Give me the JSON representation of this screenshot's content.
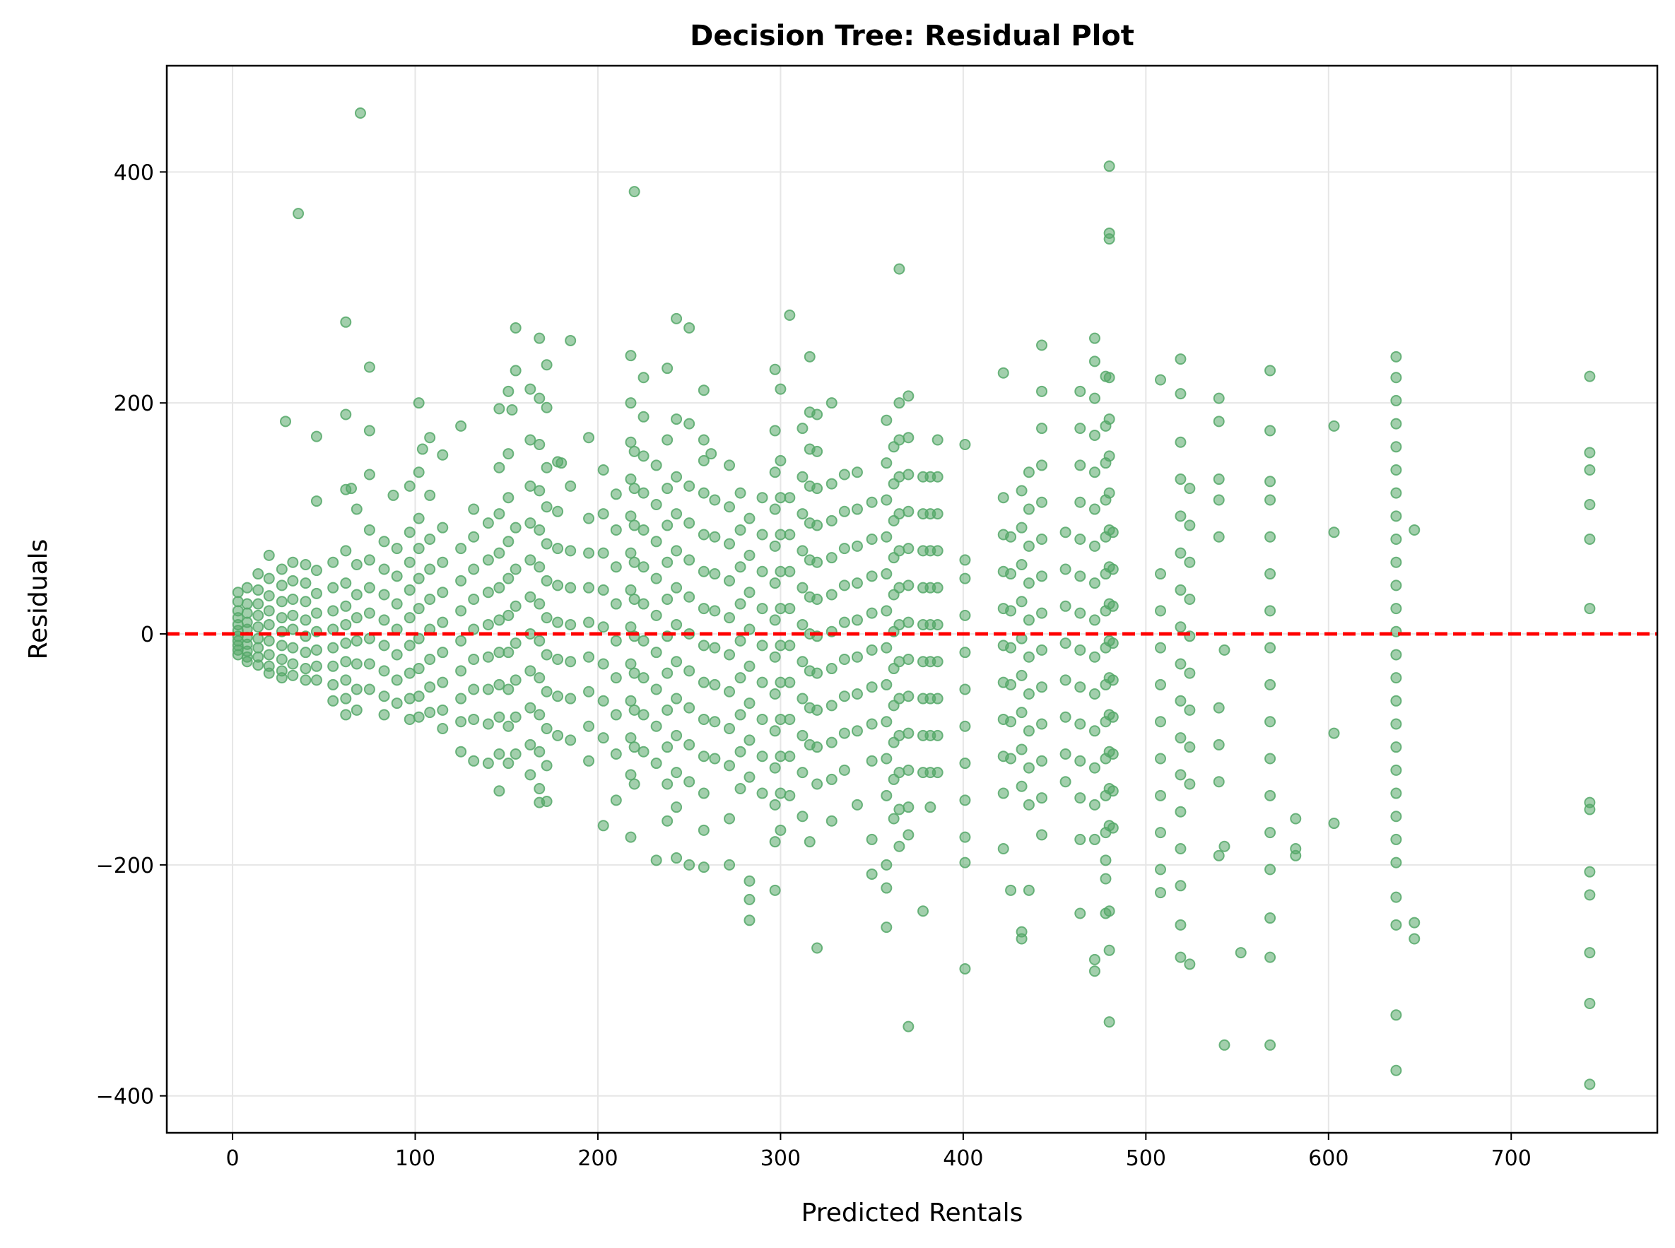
{
  "chart_data": {
    "type": "scatter",
    "title": "Decision Tree: Residual Plot",
    "xlabel": "Predicted Rentals",
    "ylabel": "Residuals",
    "xlim": [
      -36,
      780
    ],
    "ylim": [
      -432,
      492
    ],
    "xticks": [
      0,
      100,
      200,
      300,
      400,
      500,
      600,
      700
    ],
    "yticks": [
      -400,
      -200,
      0,
      200,
      400
    ],
    "ytick_labels": [
      "−400",
      "−200",
      "0",
      "200",
      "400"
    ],
    "grid": true,
    "point_color": "#55a868",
    "reference_line": {
      "y": 0,
      "color": "#ff0000",
      "style": "dashed"
    },
    "columns": [
      {
        "x": 3,
        "y": [
          36,
          28,
          20,
          14,
          8,
          3,
          -2,
          -6,
          -10,
          -14,
          -18
        ]
      },
      {
        "x": 8,
        "y": [
          40,
          26,
          18,
          10,
          4,
          -3,
          -9,
          -15,
          -20,
          -24
        ]
      },
      {
        "x": 14,
        "y": [
          52,
          38,
          26,
          16,
          6,
          -4,
          -12,
          -20,
          -27
        ]
      },
      {
        "x": 20,
        "y": [
          68,
          48,
          33,
          20,
          8,
          -6,
          -18,
          -28,
          -34
        ]
      },
      {
        "x": 27,
        "y": [
          56,
          42,
          28,
          14,
          2,
          -10,
          -22,
          -32,
          -38
        ]
      },
      {
        "x": 33,
        "y": [
          62,
          46,
          30,
          16,
          4,
          -12,
          -26,
          -36
        ]
      },
      {
        "x": 40,
        "y": [
          60,
          44,
          28,
          12,
          -2,
          -16,
          -30,
          -40
        ]
      },
      {
        "x": 46,
        "y": [
          171,
          115,
          55,
          35,
          18,
          2,
          -14,
          -28,
          -40
        ]
      },
      {
        "x": 55,
        "y": [
          62,
          40,
          20,
          4,
          -12,
          -28,
          -44,
          -58
        ]
      },
      {
        "x": 62,
        "y": [
          270,
          190,
          125,
          72,
          44,
          24,
          8,
          -8,
          -24,
          -40,
          -56,
          -70
        ]
      },
      {
        "x": 68,
        "y": [
          108,
          60,
          34,
          14,
          -6,
          -26,
          -48,
          -66
        ]
      },
      {
        "x": 75,
        "y": [
          231,
          176,
          138,
          90,
          64,
          40,
          18,
          -4,
          -26,
          -48
        ]
      },
      {
        "x": 83,
        "y": [
          80,
          56,
          34,
          12,
          -10,
          -32,
          -54,
          -70
        ]
      },
      {
        "x": 90,
        "y": [
          74,
          50,
          26,
          4,
          -18,
          -40,
          -60
        ]
      },
      {
        "x": 97,
        "y": [
          128,
          88,
          62,
          38,
          14,
          -10,
          -34,
          -56,
          -74
        ]
      },
      {
        "x": 102,
        "y": [
          200,
          140,
          100,
          74,
          48,
          22,
          -4,
          -30,
          -54,
          -72
        ]
      },
      {
        "x": 108,
        "y": [
          170,
          120,
          82,
          56,
          30,
          4,
          -22,
          -46,
          -68
        ]
      },
      {
        "x": 115,
        "y": [
          155,
          92,
          62,
          36,
          10,
          -16,
          -42,
          -66,
          -82
        ]
      },
      {
        "x": 125,
        "y": [
          180,
          74,
          46,
          20,
          -6,
          -32,
          -56,
          -76,
          -102
        ]
      },
      {
        "x": 132,
        "y": [
          108,
          84,
          56,
          30,
          4,
          -22,
          -48,
          -74,
          -110
        ]
      },
      {
        "x": 140,
        "y": [
          96,
          64,
          36,
          8,
          -20,
          -48,
          -78,
          -112
        ]
      },
      {
        "x": 146,
        "y": [
          195,
          144,
          104,
          70,
          40,
          12,
          -16,
          -44,
          -72,
          -104,
          -136
        ]
      },
      {
        "x": 151,
        "y": [
          210,
          156,
          118,
          80,
          48,
          16,
          -16,
          -48,
          -80,
          -112
        ]
      },
      {
        "x": 155,
        "y": [
          265,
          228,
          92,
          56,
          24,
          -8,
          -40,
          -72,
          -104
        ]
      },
      {
        "x": 163,
        "y": [
          212,
          168,
          128,
          96,
          64,
          32,
          0,
          -32,
          -64,
          -96,
          -122
        ]
      },
      {
        "x": 168,
        "y": [
          256,
          204,
          164,
          124,
          90,
          58,
          26,
          -6,
          -38,
          -70,
          -102,
          -134,
          -146
        ]
      },
      {
        "x": 172,
        "y": [
          233,
          196,
          144,
          110,
          78,
          46,
          14,
          -18,
          -50,
          -82,
          -114,
          -145
        ]
      },
      {
        "x": 178,
        "y": [
          149,
          106,
          74,
          42,
          10,
          -22,
          -54,
          -88
        ]
      },
      {
        "x": 185,
        "y": [
          254,
          128,
          72,
          40,
          8,
          -24,
          -56,
          -92
        ]
      },
      {
        "x": 195,
        "y": [
          100,
          70,
          40,
          10,
          -20,
          -50,
          -80,
          -110
        ]
      },
      {
        "x": 203,
        "y": [
          142,
          104,
          70,
          38,
          6,
          -26,
          -58,
          -90,
          -166
        ]
      },
      {
        "x": 210,
        "y": [
          121,
          90,
          58,
          26,
          -6,
          -38,
          -70,
          -104,
          -144
        ]
      },
      {
        "x": 218,
        "y": [
          241,
          200,
          166,
          134,
          102,
          70,
          38,
          6,
          -26,
          -58,
          -90,
          -122,
          -176
        ]
      },
      {
        "x": 220,
        "y": [
          383,
          158,
          126,
          94,
          62,
          30,
          -2,
          -34,
          -66,
          -98,
          -130
        ]
      },
      {
        "x": 225,
        "y": [
          222,
          188,
          154,
          122,
          90,
          58,
          26,
          -6,
          -38,
          -70,
          -102
        ]
      },
      {
        "x": 232,
        "y": [
          146,
          112,
          80,
          48,
          16,
          -16,
          -48,
          -80,
          -112,
          -196
        ]
      },
      {
        "x": 238,
        "y": [
          230,
          168,
          126,
          94,
          62,
          30,
          -2,
          -34,
          -66,
          -98,
          -130,
          -162
        ]
      },
      {
        "x": 243,
        "y": [
          273,
          186,
          136,
          104,
          72,
          40,
          8,
          -24,
          -56,
          -88,
          -120,
          -150,
          -194
        ]
      },
      {
        "x": 250,
        "y": [
          265,
          182,
          128,
          96,
          64,
          32,
          0,
          -32,
          -64,
          -96,
          -128,
          -200
        ]
      },
      {
        "x": 258,
        "y": [
          211,
          168,
          150,
          122,
          86,
          54,
          22,
          -10,
          -42,
          -74,
          -106,
          -138,
          -170,
          -202
        ]
      },
      {
        "x": 264,
        "y": [
          116,
          84,
          52,
          20,
          -12,
          -44,
          -76,
          -108
        ]
      },
      {
        "x": 272,
        "y": [
          146,
          110,
          78,
          46,
          14,
          -18,
          -50,
          -82,
          -114,
          -160,
          -200
        ]
      },
      {
        "x": 278,
        "y": [
          122,
          90,
          58,
          26,
          -6,
          -38,
          -70,
          -102,
          -134
        ]
      },
      {
        "x": 283,
        "y": [
          100,
          68,
          36,
          4,
          -28,
          -60,
          -92,
          -124,
          -214,
          -230,
          -248
        ]
      },
      {
        "x": 290,
        "y": [
          118,
          86,
          54,
          22,
          -10,
          -42,
          -74,
          -106,
          -138
        ]
      },
      {
        "x": 297,
        "y": [
          229,
          176,
          140,
          108,
          76,
          44,
          12,
          -20,
          -52,
          -84,
          -116,
          -148,
          -180,
          -222
        ]
      },
      {
        "x": 300,
        "y": [
          212,
          150,
          118,
          86,
          54,
          22,
          -10,
          -42,
          -74,
          -106,
          -138,
          -170
        ]
      },
      {
        "x": 305,
        "y": [
          276,
          118,
          86,
          54,
          22,
          -10,
          -42,
          -74,
          -106,
          -140
        ]
      },
      {
        "x": 312,
        "y": [
          178,
          136,
          104,
          72,
          40,
          8,
          -24,
          -56,
          -88,
          -120,
          -158
        ]
      },
      {
        "x": 316,
        "y": [
          240,
          192,
          160,
          128,
          96,
          64,
          32,
          0,
          -32,
          -64,
          -96,
          -180
        ]
      },
      {
        "x": 320,
        "y": [
          190,
          158,
          126,
          94,
          62,
          30,
          -2,
          -34,
          -66,
          -98,
          -130,
          -272
        ]
      },
      {
        "x": 328,
        "y": [
          200,
          130,
          98,
          66,
          34,
          2,
          -30,
          -62,
          -94,
          -126,
          -162
        ]
      },
      {
        "x": 335,
        "y": [
          138,
          106,
          74,
          42,
          10,
          -22,
          -54,
          -86,
          -118
        ]
      },
      {
        "x": 342,
        "y": [
          140,
          108,
          76,
          44,
          12,
          -20,
          -52,
          -84,
          -148
        ]
      },
      {
        "x": 350,
        "y": [
          114,
          82,
          50,
          18,
          -14,
          -46,
          -78,
          -110,
          -178,
          -208
        ]
      },
      {
        "x": 358,
        "y": [
          185,
          148,
          116,
          84,
          52,
          20,
          -12,
          -44,
          -76,
          -108,
          -140,
          -200,
          -220,
          -254
        ]
      },
      {
        "x": 362,
        "y": [
          162,
          130,
          98,
          66,
          34,
          2,
          -30,
          -62,
          -94,
          -126,
          -160
        ]
      },
      {
        "x": 365,
        "y": [
          316,
          200,
          168,
          136,
          104,
          72,
          40,
          8,
          -24,
          -56,
          -88,
          -120,
          -152,
          -184
        ]
      },
      {
        "x": 370,
        "y": [
          206,
          170,
          138,
          106,
          74,
          42,
          10,
          -22,
          -54,
          -86,
          -118,
          -150,
          -174,
          -340
        ]
      },
      {
        "x": 378,
        "y": [
          136,
          104,
          72,
          40,
          8,
          -24,
          -56,
          -88,
          -120,
          -240
        ]
      },
      {
        "x": 382,
        "y": [
          136,
          104,
          72,
          40,
          8,
          -24,
          -56,
          -88,
          -120,
          -150
        ]
      },
      {
        "x": 386,
        "y": [
          168,
          136,
          104,
          72,
          40,
          8,
          -24,
          -56,
          -88,
          -120
        ]
      },
      {
        "x": 401,
        "y": [
          164,
          64,
          48,
          16,
          -16,
          -48,
          -80,
          -112,
          -144,
          -176,
          -198,
          -290
        ]
      },
      {
        "x": 422,
        "y": [
          226,
          118,
          86,
          54,
          22,
          -10,
          -42,
          -74,
          -106,
          -138,
          -186
        ]
      },
      {
        "x": 426,
        "y": [
          84,
          52,
          20,
          -12,
          -44,
          -76,
          -108,
          -222
        ]
      },
      {
        "x": 432,
        "y": [
          124,
          92,
          60,
          28,
          -4,
          -36,
          -68,
          -100,
          -132,
          -258,
          -264
        ]
      },
      {
        "x": 436,
        "y": [
          140,
          108,
          76,
          44,
          12,
          -20,
          -52,
          -84,
          -116,
          -148,
          -222
        ]
      },
      {
        "x": 443,
        "y": [
          250,
          210,
          178,
          146,
          114,
          82,
          50,
          18,
          -14,
          -46,
          -78,
          -110,
          -142,
          -174
        ]
      },
      {
        "x": 456,
        "y": [
          88,
          56,
          24,
          -8,
          -40,
          -72,
          -104,
          -128
        ]
      },
      {
        "x": 464,
        "y": [
          210,
          178,
          146,
          114,
          82,
          50,
          18,
          -14,
          -46,
          -78,
          -110,
          -142,
          -178,
          -242
        ]
      },
      {
        "x": 472,
        "y": [
          256,
          236,
          204,
          172,
          140,
          108,
          76,
          44,
          12,
          -20,
          -52,
          -84,
          -116,
          -148,
          -178,
          -282,
          -292
        ]
      },
      {
        "x": 478,
        "y": [
          223,
          180,
          148,
          116,
          84,
          52,
          20,
          -12,
          -44,
          -76,
          -108,
          -140,
          -172,
          -196,
          -212,
          -242
        ]
      },
      {
        "x": 480,
        "y": [
          405,
          347,
          342,
          222,
          186,
          154,
          122,
          90,
          58,
          26,
          -6,
          -38,
          -70,
          -102,
          -134,
          -166,
          -240,
          -274,
          -336
        ]
      },
      {
        "x": 482,
        "y": [
          88,
          56,
          24,
          -8,
          -40,
          -72,
          -104,
          -136,
          -168
        ]
      },
      {
        "x": 508,
        "y": [
          220,
          52,
          20,
          -12,
          -44,
          -76,
          -108,
          -140,
          -172,
          -204,
          -224
        ]
      },
      {
        "x": 519,
        "y": [
          238,
          208,
          166,
          134,
          102,
          70,
          38,
          6,
          -26,
          -58,
          -90,
          -122,
          -154,
          -186,
          -218,
          -252,
          -280
        ]
      },
      {
        "x": 524,
        "y": [
          126,
          94,
          62,
          30,
          -2,
          -34,
          -66,
          -98,
          -130,
          -286
        ]
      },
      {
        "x": 540,
        "y": [
          204,
          184,
          134,
          116,
          84,
          -64,
          -96,
          -128,
          -192
        ]
      },
      {
        "x": 543,
        "y": [
          -14,
          -184,
          -356
        ]
      },
      {
        "x": 552,
        "y": [
          -276
        ]
      },
      {
        "x": 568,
        "y": [
          228,
          176,
          132,
          116,
          84,
          52,
          20,
          -12,
          -44,
          -76,
          -108,
          -140,
          -172,
          -204,
          -246,
          -280,
          -356
        ]
      },
      {
        "x": 582,
        "y": [
          -160,
          -186,
          -192
        ]
      },
      {
        "x": 603,
        "y": [
          180,
          88,
          -86,
          -164
        ]
      },
      {
        "x": 637,
        "y": [
          240,
          222,
          202,
          182,
          162,
          142,
          122,
          102,
          82,
          62,
          42,
          22,
          2,
          -18,
          -38,
          -58,
          -78,
          -98,
          -118,
          -138,
          -158,
          -178,
          -198,
          -228,
          -252,
          -330,
          -378
        ]
      },
      {
        "x": 647,
        "y": [
          90,
          -250,
          -264
        ]
      },
      {
        "x": 743,
        "y": [
          223,
          157,
          142,
          112,
          82,
          22,
          -146,
          -152,
          -206,
          -226,
          -276,
          -320,
          -390
        ]
      }
    ],
    "scattered_points": [
      [
        70,
        451
      ],
      [
        36,
        364
      ],
      [
        29,
        184
      ],
      [
        65,
        126
      ],
      [
        88,
        120
      ],
      [
        104,
        160
      ],
      [
        153,
        194
      ],
      [
        180,
        148
      ],
      [
        195,
        170
      ],
      [
        262,
        156
      ]
    ]
  }
}
